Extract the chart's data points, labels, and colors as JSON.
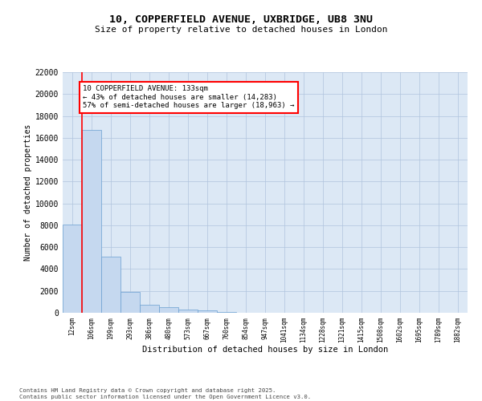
{
  "title_line1": "10, COPPERFIELD AVENUE, UXBRIDGE, UB8 3NU",
  "title_line2": "Size of property relative to detached houses in London",
  "xlabel": "Distribution of detached houses by size in London",
  "ylabel": "Number of detached properties",
  "categories": [
    "12sqm",
    "106sqm",
    "199sqm",
    "293sqm",
    "386sqm",
    "480sqm",
    "573sqm",
    "667sqm",
    "760sqm",
    "854sqm",
    "947sqm",
    "1041sqm",
    "1134sqm",
    "1228sqm",
    "1321sqm",
    "1415sqm",
    "1508sqm",
    "1602sqm",
    "1695sqm",
    "1789sqm",
    "1882sqm"
  ],
  "values": [
    8100,
    16700,
    5100,
    1900,
    700,
    500,
    300,
    200,
    100,
    0,
    0,
    0,
    0,
    0,
    0,
    0,
    0,
    0,
    0,
    0,
    0
  ],
  "bar_color": "#c5d8ef",
  "bar_edge_color": "#6a9fd0",
  "red_line_x": 0.5,
  "ylim": [
    0,
    22000
  ],
  "yticks": [
    0,
    2000,
    4000,
    6000,
    8000,
    10000,
    12000,
    14000,
    16000,
    18000,
    20000,
    22000
  ],
  "background_color": "#ffffff",
  "plot_bg_color": "#dce8f5",
  "grid_color": "#b0c4de",
  "annotation_line1": "10 COPPERFIELD AVENUE: 133sqm",
  "annotation_line2": "← 43% of detached houses are smaller (14,283)",
  "annotation_line3": "57% of semi-detached houses are larger (18,963) →",
  "footnote_line1": "Contains HM Land Registry data © Crown copyright and database right 2025.",
  "footnote_line2": "Contains public sector information licensed under the Open Government Licence v3.0."
}
